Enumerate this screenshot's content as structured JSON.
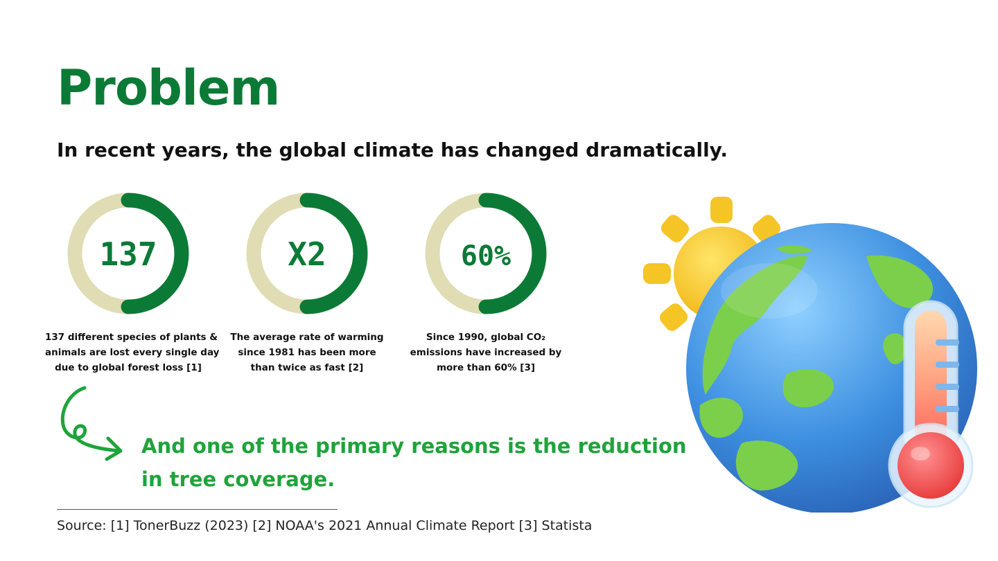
{
  "title": "Problem",
  "subtitle": "In recent years, the global climate has changed dramatically.",
  "stats": [
    {
      "value": "137",
      "desc_lines": [
        "137 different species of plants &",
        "animals are lost every single day",
        "due to global forest loss [1]"
      ]
    },
    {
      "value": "X2",
      "desc_lines": [
        "The average rate of warming",
        "since 1981 has been more",
        "than twice as fast [2]"
      ]
    },
    {
      "value": "60%",
      "desc_lines": [
        "Since 1990, global CO₂",
        "emissions have increased by",
        "more than 60% [3]"
      ]
    }
  ],
  "callout": {
    "line1": "And one of the primary reasons is the reduction",
    "line2": "in tree coverage."
  },
  "source": "Source: [1] TonerBuzz (2023) [2] NOAA's 2021 Annual Climate Report [3] Statista",
  "colors": {
    "brand_green": "#0b7a36",
    "callout_green": "#1fa33b",
    "ring_track": "#e0dcb4",
    "text_dark": "#111111"
  },
  "icons": {
    "arrow": "curly-arrow-icon",
    "illustration": "earth-sun-thermometer-icon"
  }
}
